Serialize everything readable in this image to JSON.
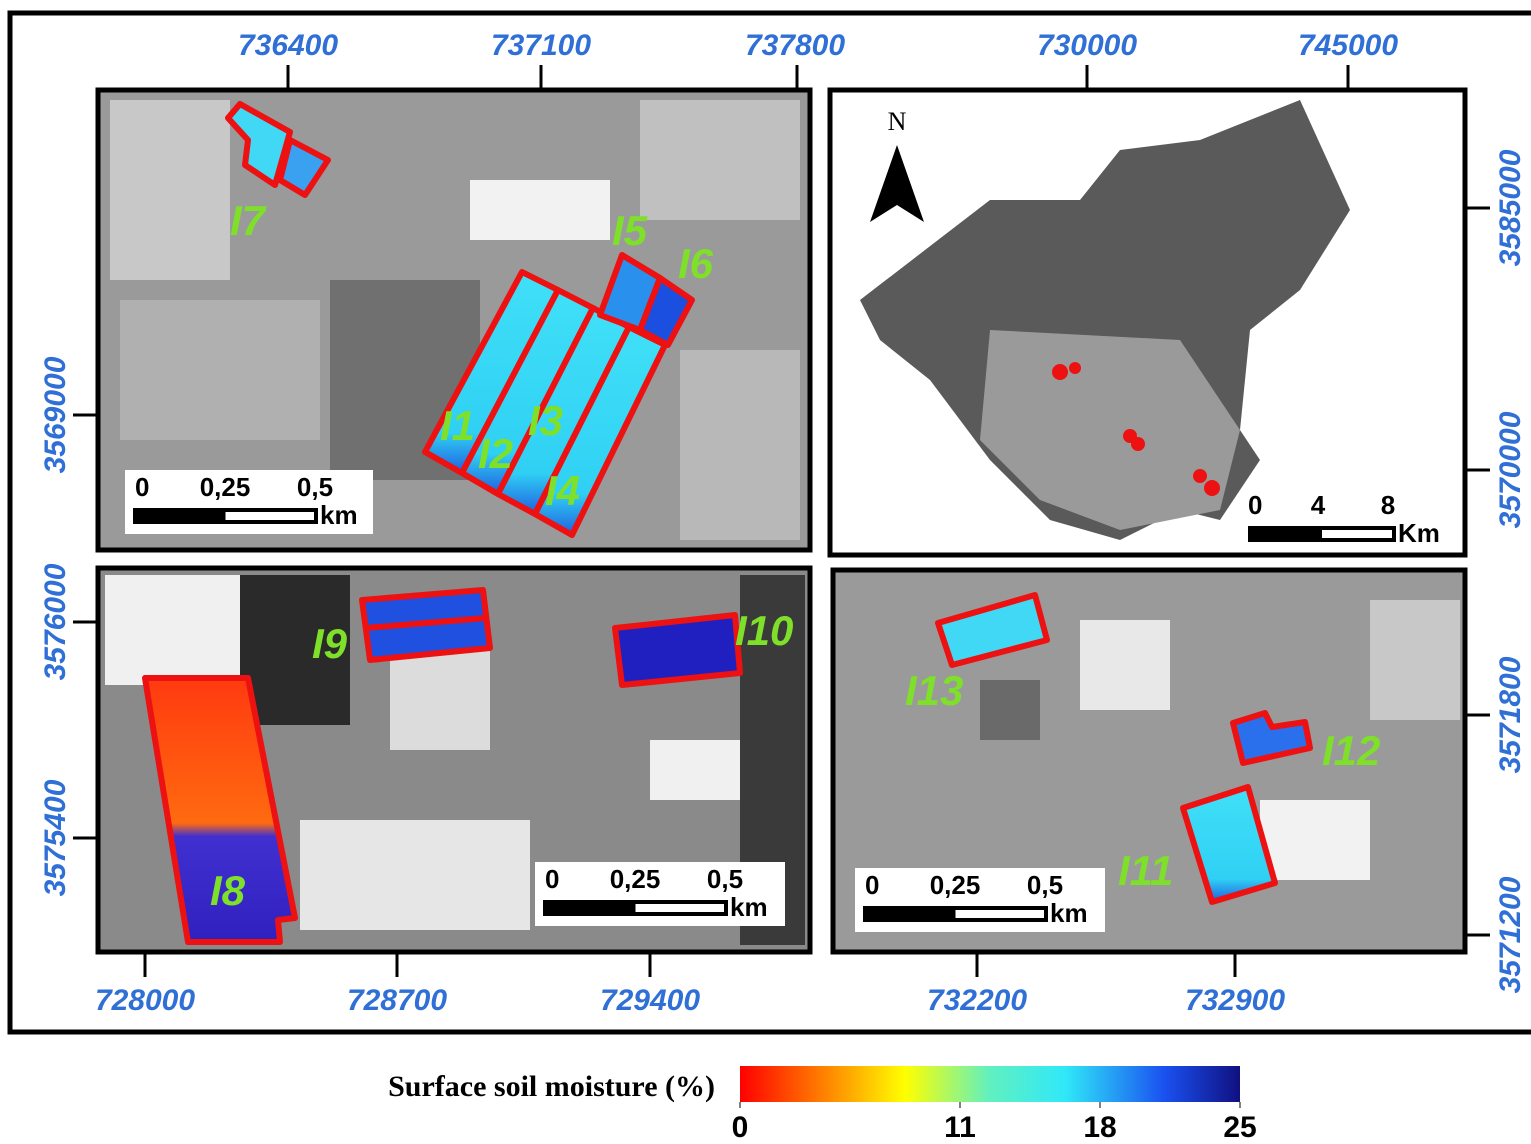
{
  "top_axis": [
    "736400",
    "737100",
    "737800",
    "730000",
    "745000"
  ],
  "bottom_axis": [
    "728000",
    "728700",
    "729400",
    "732200",
    "732900"
  ],
  "left_axis": [
    "3569000",
    "3576000",
    "3575400"
  ],
  "right_axis": [
    "3585000",
    "3570000",
    "3571800",
    "3571200"
  ],
  "field_labels": [
    "I1",
    "I2",
    "I3",
    "I4",
    "I5",
    "I6",
    "I7",
    "I8",
    "I9",
    "I10",
    "I11",
    "I12",
    "I13"
  ],
  "north": "N",
  "scale_bars": [
    {
      "labels": [
        "0",
        "0,25",
        "0,5"
      ],
      "unit": "km"
    },
    {
      "labels": [
        "0",
        "4",
        "8"
      ],
      "unit": "Km"
    },
    {
      "labels": [
        "0",
        "0,25",
        "0,5"
      ],
      "unit": "km"
    },
    {
      "labels": [
        "0",
        "0,25",
        "0,5"
      ],
      "unit": "km"
    }
  ],
  "legend": {
    "title": "Surface soil moisture (%)",
    "ticks": [
      0,
      11,
      18,
      25
    ]
  }
}
